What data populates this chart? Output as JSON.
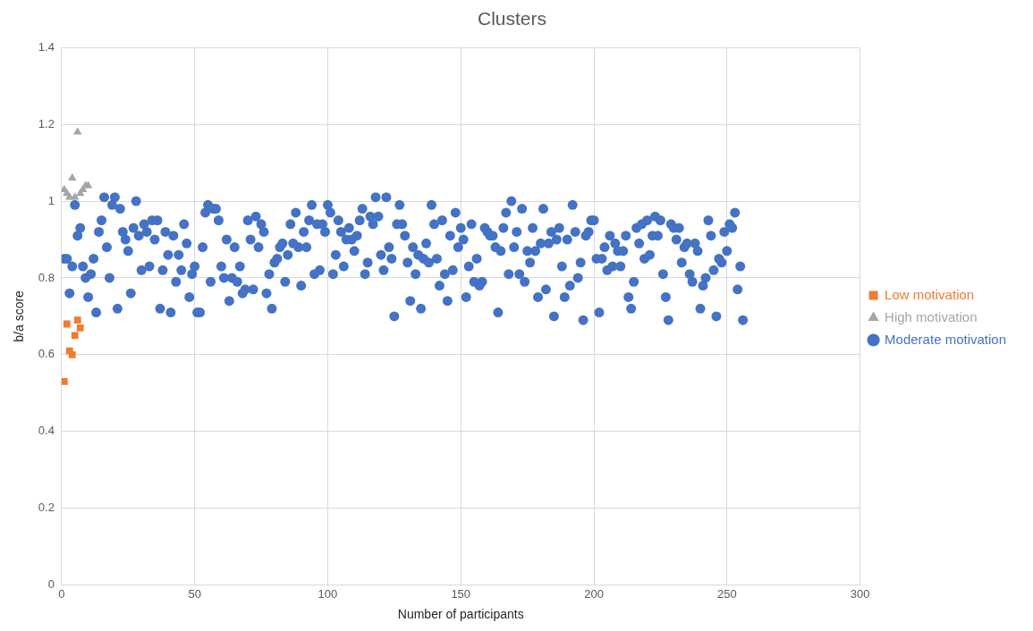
{
  "chart_data": {
    "type": "scatter",
    "title": "Clusters",
    "xlabel": "Number of participants",
    "ylabel": "b/a score",
    "xlim": [
      0,
      300
    ],
    "xticks": [
      0,
      50,
      100,
      150,
      200,
      250,
      300
    ],
    "ylim": [
      0,
      1.4
    ],
    "yticks": [
      0,
      0.2,
      0.4,
      0.6,
      0.8,
      1,
      1.2,
      1.4
    ],
    "grid": true,
    "legend": "right",
    "series": [
      {
        "name": "Low motivation",
        "color": "#ed7d31",
        "marker": "square",
        "x": [
          1,
          2,
          3,
          4,
          5,
          6,
          7
        ],
        "values": [
          0.53,
          0.68,
          0.61,
          0.6,
          0.65,
          0.69,
          0.67
        ]
      },
      {
        "name": "High motivation",
        "color": "#a5a5a5",
        "marker": "triangle",
        "x": [
          1,
          2,
          3,
          4,
          5,
          6,
          7,
          8,
          9,
          10
        ],
        "values": [
          1.03,
          1.02,
          1.01,
          1.06,
          1.01,
          1.18,
          1.02,
          1.03,
          1.04,
          1.04
        ]
      },
      {
        "name": "Moderate motivation",
        "color": "#4472c4",
        "marker": "circle",
        "x": [
          1,
          2,
          3,
          4,
          5,
          6,
          7,
          8,
          9,
          10,
          11,
          12,
          13,
          14,
          15,
          16,
          17,
          18,
          19,
          20,
          21,
          22,
          23,
          24,
          25,
          26,
          27,
          28,
          29,
          30,
          31,
          32,
          33,
          34,
          35,
          36,
          37,
          38,
          39,
          40,
          41,
          42,
          43,
          44,
          45,
          46,
          47,
          48,
          49,
          50,
          51,
          52,
          53,
          54,
          55,
          56,
          57,
          58,
          59,
          60,
          61,
          62,
          63,
          64,
          65,
          66,
          67,
          68,
          69,
          70,
          71,
          72,
          73,
          74,
          75,
          76,
          77,
          78,
          79,
          80,
          81,
          82,
          83,
          84,
          85,
          86,
          87,
          88,
          89,
          90,
          91,
          92,
          93,
          94,
          95,
          96,
          97,
          98,
          99,
          100,
          101,
          102,
          103,
          104,
          105,
          106,
          107,
          108,
          109,
          110,
          111,
          112,
          113,
          114,
          115,
          116,
          117,
          118,
          119,
          120,
          121,
          122,
          123,
          124,
          125,
          126,
          127,
          128,
          129,
          130,
          131,
          132,
          133,
          134,
          135,
          136,
          137,
          138,
          139,
          140,
          141,
          142,
          143,
          144,
          145,
          146,
          147,
          148,
          149,
          150,
          151,
          152,
          153,
          154,
          155,
          156,
          157,
          158,
          159,
          160,
          161,
          162,
          163,
          164,
          165,
          166,
          167,
          168,
          169,
          170,
          171,
          172,
          173,
          174,
          175,
          176,
          177,
          178,
          179,
          180,
          181,
          182,
          183,
          184,
          185,
          186,
          187,
          188,
          189,
          190,
          191,
          192,
          193,
          194,
          195,
          196,
          197,
          198,
          199,
          200,
          201,
          202,
          203,
          204,
          205,
          206,
          207,
          208,
          209,
          210,
          211,
          212,
          213,
          214,
          215,
          216,
          217,
          218,
          219,
          220,
          221,
          222,
          223,
          224,
          225,
          226,
          227,
          228,
          229,
          230,
          231,
          232,
          233,
          234,
          235,
          236,
          237,
          238,
          239,
          240,
          241,
          242,
          243,
          244,
          245,
          246,
          247,
          248,
          249,
          250,
          251,
          252,
          253,
          254,
          255,
          256
        ],
        "values": [
          0.85,
          0.85,
          0.76,
          0.83,
          0.99,
          0.91,
          0.93,
          0.83,
          0.8,
          0.75,
          0.81,
          0.85,
          0.71,
          0.92,
          0.95,
          1.01,
          0.88,
          0.8,
          0.99,
          1.01,
          0.72,
          0.98,
          0.92,
          0.9,
          0.87,
          0.76,
          0.93,
          1,
          0.91,
          0.82,
          0.94,
          0.92,
          0.83,
          0.95,
          0.9,
          0.95,
          0.72,
          0.82,
          0.92,
          0.86,
          0.71,
          0.91,
          0.79,
          0.86,
          0.82,
          0.94,
          0.89,
          0.75,
          0.81,
          0.83,
          0.71,
          0.71,
          0.88,
          0.97,
          0.99,
          0.79,
          0.98,
          0.98,
          0.95,
          0.83,
          0.8,
          0.9,
          0.74,
          0.8,
          0.88,
          0.79,
          0.83,
          0.76,
          0.77,
          0.95,
          0.9,
          0.77,
          0.96,
          0.88,
          0.94,
          0.92,
          0.76,
          0.81,
          0.72,
          0.84,
          0.85,
          0.88,
          0.89,
          0.79,
          0.86,
          0.94,
          0.89,
          0.97,
          0.88,
          0.78,
          0.92,
          0.88,
          0.95,
          0.99,
          0.81,
          0.94,
          0.82,
          0.94,
          0.92,
          0.99,
          0.97,
          0.81,
          0.86,
          0.95,
          0.92,
          0.83,
          0.9,
          0.93,
          0.9,
          0.87,
          0.91,
          0.95,
          0.98,
          0.81,
          0.84,
          0.96,
          0.94,
          1.01,
          0.96,
          0.86,
          0.82,
          1.01,
          0.88,
          0.85,
          0.7,
          0.94,
          0.99,
          0.94,
          0.91,
          0.84,
          0.74,
          0.88,
          0.81,
          0.86,
          0.72,
          0.85,
          0.89,
          0.84,
          0.99,
          0.94,
          0.85,
          0.78,
          0.95,
          0.81,
          0.74,
          0.91,
          0.82,
          0.97,
          0.88,
          0.93,
          0.9,
          0.75,
          0.83,
          0.94,
          0.79,
          0.85,
          0.78,
          0.79,
          0.93,
          0.92,
          0.91,
          0.91,
          0.88,
          0.71,
          0.87,
          0.93,
          0.97,
          0.81,
          1,
          0.88,
          0.92,
          0.81,
          0.98,
          0.79,
          0.87,
          0.84,
          0.93,
          0.87,
          0.75,
          0.89,
          0.98,
          0.77,
          0.89,
          0.92,
          0.7,
          0.9,
          0.93,
          0.83,
          0.75,
          0.9,
          0.78,
          0.99,
          0.92,
          0.8,
          0.84,
          0.69,
          0.91,
          0.92,
          0.95,
          0.95,
          0.85,
          0.71,
          0.85,
          0.88,
          0.82,
          0.91,
          0.83,
          0.89,
          0.87,
          0.83,
          0.87,
          0.91,
          0.75,
          0.72,
          0.79,
          0.93,
          0.89,
          0.94,
          0.85,
          0.95,
          0.86,
          0.91,
          0.96,
          0.91,
          0.95,
          0.81,
          0.75,
          0.69,
          0.94,
          0.93,
          0.9,
          0.93,
          0.84,
          0.88,
          0.89,
          0.81,
          0.79,
          0.89,
          0.87,
          0.72,
          0.78,
          0.8,
          0.95,
          0.91,
          0.82,
          0.7,
          0.85,
          0.84,
          0.92,
          0.87,
          0.94,
          0.93,
          0.97,
          0.77,
          0.83,
          0.69
        ]
      }
    ]
  }
}
